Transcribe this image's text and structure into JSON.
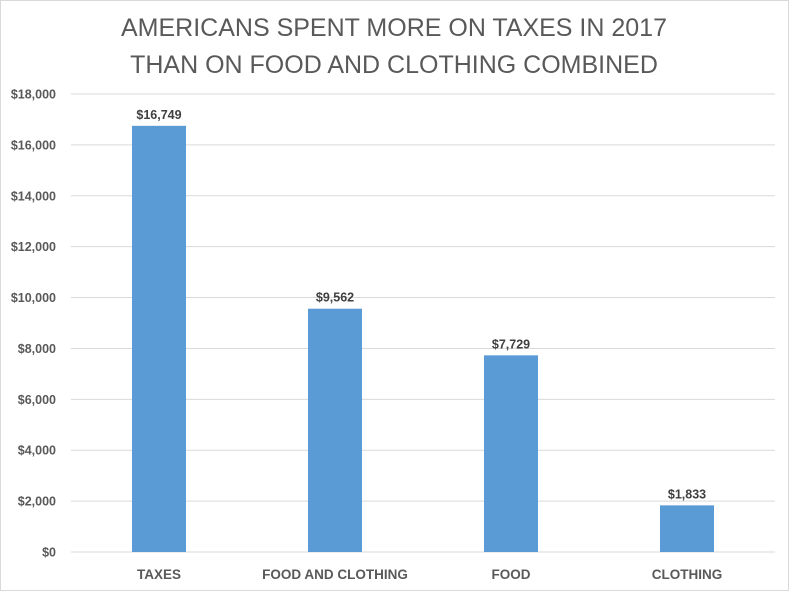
{
  "chart_data": {
    "type": "bar",
    "title": [
      "AMERICANS SPENT MORE ON TAXES IN 2017",
      "THAN ON FOOD AND CLOTHING COMBINED"
    ],
    "xlabel": "",
    "ylabel": "",
    "categories": [
      "TAXES",
      "FOOD AND CLOTHING",
      "FOOD",
      "CLOTHING"
    ],
    "values": [
      16749,
      9562,
      7729,
      1833
    ],
    "data_labels": [
      "$16,749",
      "$9,562",
      "$7,729",
      "$1,833"
    ],
    "ylim": [
      0,
      18000
    ],
    "yticks": [
      0,
      2000,
      4000,
      6000,
      8000,
      10000,
      12000,
      14000,
      16000,
      18000
    ],
    "ytick_labels": [
      "$0",
      "$2,000",
      "$4,000",
      "$6,000",
      "$8,000",
      "$10,000",
      "$12,000",
      "$14,000",
      "$16,000",
      "$18,000"
    ],
    "grid": true,
    "legend": "none",
    "colors": {
      "bar": "#5b9bd5",
      "grid": "#d9d9d9",
      "text": "#595959"
    }
  }
}
